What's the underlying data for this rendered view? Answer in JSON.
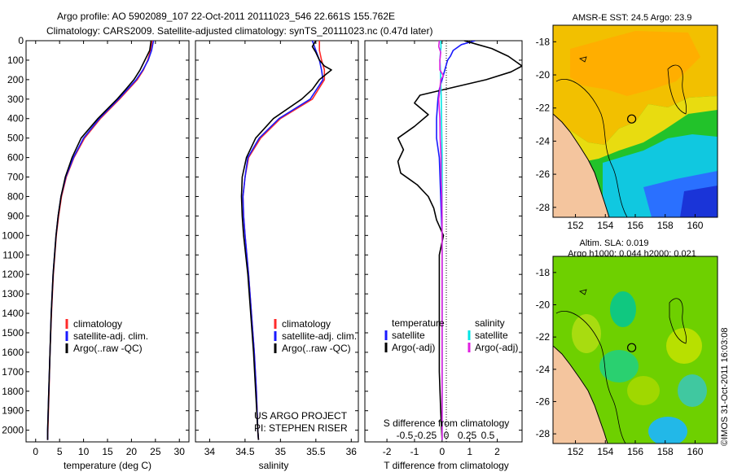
{
  "header": {
    "line1": "Argo profile: AO 5902089_107 22-Oct-2011 20111023_546 22.661S 155.762E",
    "line2": "Climatology: CARS2009. Satellite-adjusted climatology: synTS_20111023.nc (0.47d later)"
  },
  "colors": {
    "climatology": "#ff2a2a",
    "satellite": "#1a1aff",
    "argo": "#000000",
    "sat_salinity": "#00e5e5",
    "argo_salinity": "#e020e0"
  },
  "chart_data": [
    {
      "type": "line",
      "id": "temperature",
      "xlabel": "temperature (deg C)",
      "ylabel": "",
      "xlim": [
        -2,
        32
      ],
      "ylim": [
        2060,
        0
      ],
      "xticks": [
        0,
        5,
        10,
        15,
        20,
        25,
        30
      ],
      "yticks": [
        0,
        100,
        200,
        300,
        400,
        500,
        600,
        700,
        800,
        900,
        1000,
        1100,
        1200,
        1300,
        1400,
        1500,
        1600,
        1700,
        1800,
        1900,
        2000
      ],
      "legend": [
        "climatology",
        "satellite-adj. clim.",
        "Argo(..raw -QC)"
      ],
      "series": [
        {
          "name": "climatology",
          "depth": [
            0,
            50,
            100,
            150,
            200,
            300,
            400,
            500,
            600,
            700,
            800,
            900,
            1000,
            1200,
            1400,
            1600,
            1800,
            2000,
            2050
          ],
          "values": [
            24.3,
            24.0,
            23.4,
            22.5,
            21.2,
            17.5,
            13.5,
            10.2,
            8.0,
            6.4,
            5.4,
            4.8,
            4.3,
            3.7,
            3.3,
            3.0,
            2.8,
            2.55,
            2.5
          ]
        },
        {
          "name": "satellite",
          "depth": [
            0,
            50,
            100,
            150,
            200,
            300,
            400,
            500,
            600,
            700,
            800,
            900,
            1000,
            1200,
            1400,
            1600,
            1800,
            2000,
            2050
          ],
          "values": [
            24.6,
            24.2,
            23.5,
            22.4,
            21.0,
            17.3,
            13.3,
            10.0,
            7.9,
            6.3,
            5.3,
            4.7,
            4.25,
            3.65,
            3.25,
            3.0,
            2.75,
            2.5,
            2.5
          ]
        },
        {
          "name": "argo",
          "depth": [
            0,
            50,
            100,
            150,
            200,
            250,
            300,
            400,
            500,
            600,
            700,
            800,
            900,
            1000,
            1200,
            1400,
            1600,
            1800,
            2000,
            2050
          ],
          "values": [
            24.1,
            23.8,
            22.8,
            21.8,
            20.5,
            18.8,
            17.0,
            13.0,
            9.5,
            7.6,
            6.2,
            5.3,
            4.7,
            4.25,
            3.65,
            3.25,
            3.0,
            2.75,
            2.5,
            2.5
          ]
        }
      ]
    },
    {
      "type": "line",
      "id": "salinity",
      "xlabel": "salinity",
      "xlim": [
        33.8,
        36.1
      ],
      "ylim": [
        2060,
        0
      ],
      "xticks": [
        34,
        34.5,
        35,
        35.5,
        36
      ],
      "xticklabels": [
        "34",
        "34.5",
        "35",
        "35.5",
        "36"
      ],
      "legend": [
        "climatology",
        "satellite-adj. clim.",
        "Argo(..raw -QC)"
      ],
      "annotation": [
        "US ARGO PROJECT",
        "PI: STEPHEN RISER"
      ],
      "series": [
        {
          "name": "climatology",
          "depth": [
            0,
            50,
            100,
            150,
            200,
            300,
            400,
            500,
            600,
            700,
            800,
            900,
            1000,
            1200,
            1400,
            1600,
            1800,
            2000,
            2050
          ],
          "values": [
            35.55,
            35.55,
            35.58,
            35.62,
            35.62,
            35.45,
            35.0,
            34.72,
            34.55,
            34.5,
            34.47,
            34.48,
            34.5,
            34.55,
            34.59,
            34.63,
            34.66,
            34.68,
            34.69
          ]
        },
        {
          "name": "satellite",
          "depth": [
            0,
            50,
            100,
            150,
            200,
            300,
            400,
            500,
            600,
            700,
            800,
            900,
            1000,
            1200,
            1400,
            1600,
            1800,
            2000,
            2050
          ],
          "values": [
            35.45,
            35.5,
            35.55,
            35.58,
            35.6,
            35.42,
            34.98,
            34.7,
            34.54,
            34.5,
            34.47,
            34.48,
            34.5,
            34.55,
            34.59,
            34.63,
            34.66,
            34.68,
            34.69
          ]
        },
        {
          "name": "argo",
          "depth": [
            0,
            30,
            60,
            100,
            130,
            150,
            170,
            200,
            250,
            300,
            400,
            500,
            600,
            700,
            800,
            900,
            1000,
            1200,
            1400,
            1600,
            1800,
            2000,
            2050
          ],
          "values": [
            35.5,
            35.45,
            35.5,
            35.55,
            35.62,
            35.72,
            35.65,
            35.55,
            35.45,
            35.3,
            34.9,
            34.65,
            34.52,
            34.46,
            34.45,
            34.46,
            34.48,
            34.54,
            34.58,
            34.62,
            34.65,
            34.68,
            34.69
          ]
        }
      ]
    },
    {
      "type": "line",
      "id": "difference",
      "xlabel": "T difference from climatology",
      "xlabel_top": "S difference from climatology",
      "xlim": [
        -2.8,
        2.9
      ],
      "ylim": [
        2060,
        0
      ],
      "xticks": [
        -2,
        -1,
        0,
        1,
        2
      ],
      "s_ticks": [
        -0.5,
        -0.25,
        0,
        0.25,
        0.5
      ],
      "s_ticklabels": [
        "-0.5",
        "-0.25",
        "0",
        "0.25",
        "0.5"
      ],
      "legend_temperature": [
        "temperature",
        "satellite",
        "Argo(-adj)"
      ],
      "legend_salinity": [
        "salinity",
        "satellite",
        "Argo(-adj)"
      ],
      "series": [
        {
          "name": "temperature satellite",
          "depth": [
            0,
            20,
            50,
            80,
            100,
            150,
            200,
            250,
            300,
            400,
            500,
            600,
            800,
            1000,
            1200,
            1500,
            2050
          ],
          "values": [
            1.2,
            0.7,
            0.4,
            0.3,
            0.2,
            0.1,
            0.0,
            -0.1,
            -0.15,
            -0.2,
            -0.2,
            -0.1,
            -0.05,
            0.0,
            0.0,
            0.0,
            0.0
          ]
        },
        {
          "name": "temperature argo",
          "depth": [
            0,
            20,
            40,
            60,
            80,
            100,
            130,
            160,
            200,
            240,
            280,
            320,
            380,
            440,
            500,
            560,
            620,
            680,
            740,
            800,
            860,
            920,
            1000,
            1100,
            1300,
            1500,
            1700,
            1900,
            2050
          ],
          "values": [
            0.8,
            1.3,
            1.8,
            2.1,
            2.4,
            2.6,
            2.9,
            2.5,
            1.6,
            0.4,
            -0.8,
            -1.0,
            -0.5,
            -1.0,
            -1.6,
            -1.4,
            -1.6,
            -1.5,
            -0.9,
            -0.5,
            -0.3,
            -0.2,
            0.05,
            -0.1,
            -0.1,
            -0.1,
            -0.1,
            -0.05,
            0.0
          ]
        },
        {
          "name": "salinity satellite",
          "depth": [
            0,
            30,
            60,
            100,
            150,
            200,
            300,
            400,
            500,
            600,
            800,
            1000,
            1500,
            2050
          ],
          "values": [
            -0.05,
            -0.04,
            -0.06,
            -0.08,
            -0.06,
            -0.05,
            -0.03,
            -0.02,
            -0.01,
            0.0,
            0.0,
            0.0,
            0.0,
            0.0
          ]
        },
        {
          "name": "salinity argo",
          "depth": [
            0,
            30,
            60,
            100,
            150,
            180,
            200,
            250,
            300,
            400,
            500,
            600,
            700,
            800,
            900,
            1000,
            1200,
            1500,
            2050
          ],
          "values": [
            -0.1,
            -0.12,
            -0.05,
            -0.08,
            -0.08,
            0.05,
            -0.05,
            -0.08,
            -0.12,
            -0.08,
            -0.07,
            -0.04,
            -0.04,
            -0.01,
            0.0,
            0.0,
            0.0,
            0.0,
            0.0
          ]
        }
      ]
    },
    {
      "type": "heatmap",
      "id": "sst_map",
      "title": "AMSR-E SST: 24.5 Argo: 23.9",
      "xlim": [
        150.5,
        161.5
      ],
      "ylim": [
        -28.6,
        -17.0
      ],
      "xticks": [
        152,
        154,
        156,
        158,
        160
      ],
      "yticks": [
        -18,
        -20,
        -22,
        -24,
        -26,
        -28
      ],
      "float_position": [
        155.762,
        -22.661
      ]
    },
    {
      "type": "heatmap",
      "id": "sla_map",
      "title_line1": "Altim. SLA: 0.019",
      "title_line2": "Argo h1000: 0.044 h2000: 0.021",
      "xlim": [
        150.5,
        161.5
      ],
      "ylim": [
        -28.6,
        -17.0
      ],
      "xticks": [
        152,
        154,
        156,
        158,
        160
      ],
      "yticks": [
        -18,
        -20,
        -22,
        -24,
        -26,
        -28
      ],
      "float_position": [
        155.762,
        -22.661
      ]
    }
  ],
  "footer": {
    "credit": "©IMOS 31-Oct-2011 16:03:08"
  }
}
